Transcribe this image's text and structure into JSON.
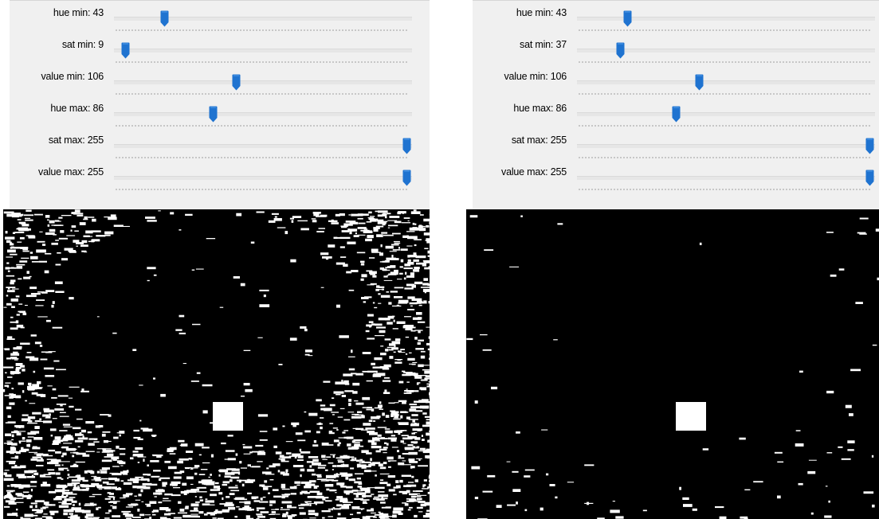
{
  "colors": {
    "thumb": "#1f73d0",
    "panel": "#f0f0f0",
    "mask_fg": "#ffffff",
    "mask_bg": "#000000"
  },
  "windows": [
    {
      "trackbars": [
        {
          "label": "hue min: 43",
          "value": 43,
          "max": 255
        },
        {
          "label": "sat min: 9",
          "value": 9,
          "max": 255
        },
        {
          "label": "value min: 106",
          "value": 106,
          "max": 255
        },
        {
          "label": "hue max: 86",
          "value": 86,
          "max": 255
        },
        {
          "label": "sat max: 255",
          "value": 255,
          "max": 255
        },
        {
          "label": "value max: 255",
          "value": 255,
          "max": 255
        }
      ],
      "mask_noise": "heavy"
    },
    {
      "trackbars": [
        {
          "label": "hue min: 43",
          "value": 43,
          "max": 255
        },
        {
          "label": "sat min: 37",
          "value": 37,
          "max": 255
        },
        {
          "label": "value min: 106",
          "value": 106,
          "max": 255
        },
        {
          "label": "hue max: 86",
          "value": 86,
          "max": 255
        },
        {
          "label": "sat max: 255",
          "value": 255,
          "max": 255
        },
        {
          "label": "value max: 255",
          "value": 255,
          "max": 255
        }
      ],
      "mask_noise": "light"
    }
  ]
}
